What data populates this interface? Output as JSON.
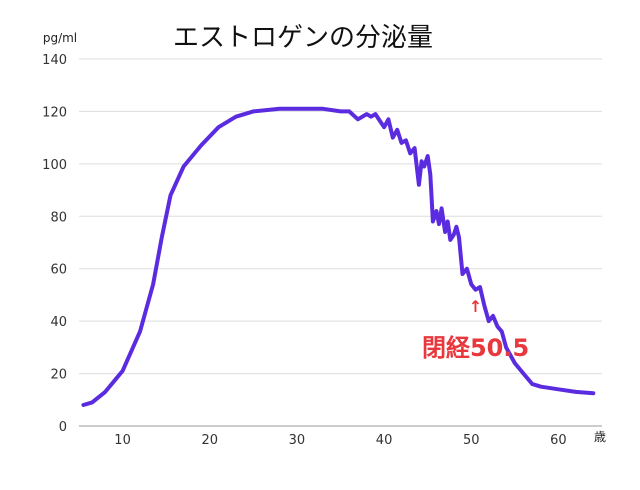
{
  "chart_data": {
    "type": "line",
    "title": "エストロゲンの分泌量",
    "ylabel": "pg/ml",
    "xlabel": "歳",
    "xlim": [
      5,
      65
    ],
    "ylim": [
      0,
      140
    ],
    "x_ticks": [
      10,
      20,
      30,
      40,
      50,
      60
    ],
    "y_ticks": [
      0,
      20,
      40,
      60,
      80,
      100,
      120,
      140
    ],
    "grid": "horizontal",
    "series": [
      {
        "color": "#5b2be0",
        "x": [
          5.5,
          6.5,
          8,
          10,
          12,
          13.5,
          14.5,
          15.5,
          17,
          19,
          21,
          23,
          25,
          28,
          31,
          33,
          35,
          36,
          37,
          38,
          38.5,
          39,
          40,
          40.5,
          41,
          41.5,
          42,
          42.5,
          43,
          43.5,
          44,
          44.3,
          44.6,
          45,
          45.3,
          45.6,
          46,
          46.3,
          46.6,
          47,
          47.3,
          47.6,
          48,
          48.3,
          48.6,
          49,
          49.5,
          50,
          50.5,
          51,
          51.5,
          52,
          52.5,
          53,
          53.5,
          54,
          55,
          56,
          57,
          58,
          60,
          62,
          64
        ],
        "y": [
          8,
          9,
          13,
          21,
          36,
          54,
          72,
          88,
          99,
          107,
          114,
          118,
          120,
          121,
          121,
          121,
          120,
          120,
          117,
          119,
          118,
          119,
          114,
          117,
          110,
          113,
          108,
          109,
          104,
          106,
          92,
          101,
          99,
          103,
          96,
          78,
          82,
          77,
          83,
          74,
          78,
          71,
          73,
          76,
          72,
          58,
          60,
          54,
          52,
          53,
          46,
          40,
          42,
          38,
          36,
          30,
          24,
          20,
          16,
          15,
          14,
          13,
          12.5
        ]
      }
    ],
    "annotations": [
      {
        "label": "閉経50.5",
        "arrow": "↑",
        "x": 50.5,
        "y": 50,
        "color": "#e8383d"
      }
    ]
  }
}
